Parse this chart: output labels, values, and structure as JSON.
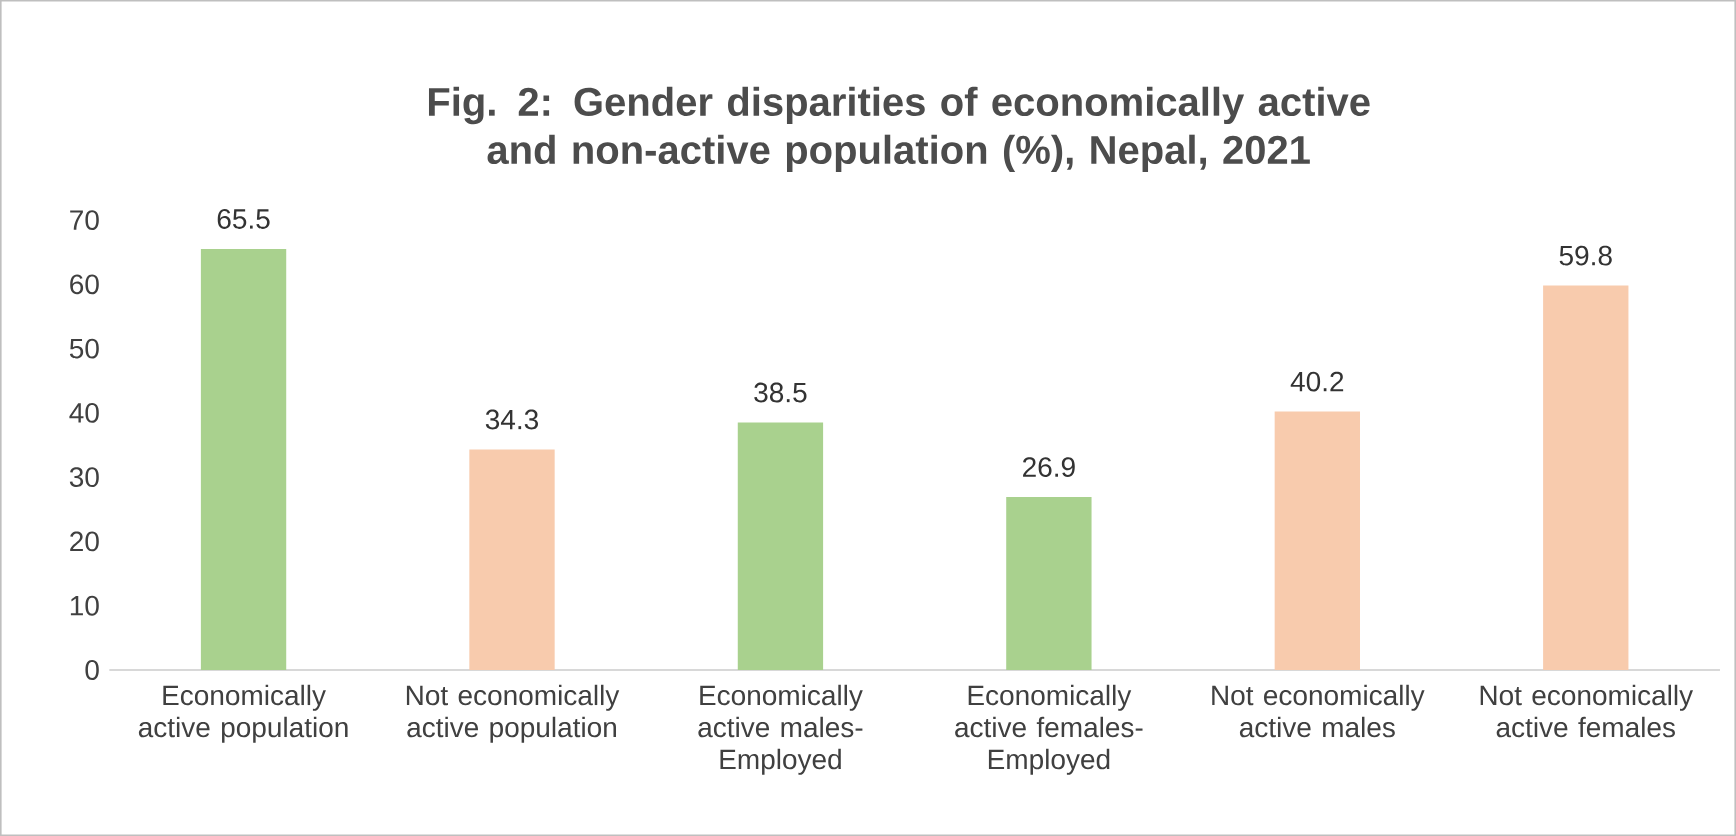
{
  "chart_data": {
    "type": "bar",
    "title": "Fig. 2: Gender disparities of economically active and non-active population (%), Nepal, 2021",
    "categories": [
      "Economically active population",
      "Not economically active population",
      "Economically active males-Employed",
      "Economically active females-Employed",
      "Not economically active males",
      "Not economically active females"
    ],
    "values": [
      65.5,
      34.3,
      38.5,
      26.9,
      40.2,
      59.8
    ],
    "colors": [
      "#a9d18e",
      "#f8cbad",
      "#a9d18e",
      "#a9d18e",
      "#f8cbad",
      "#f8cbad"
    ],
    "ylim": [
      0,
      70
    ],
    "yticks": [
      0,
      10,
      20,
      30,
      40,
      50,
      60,
      70
    ],
    "data_labels": true
  }
}
